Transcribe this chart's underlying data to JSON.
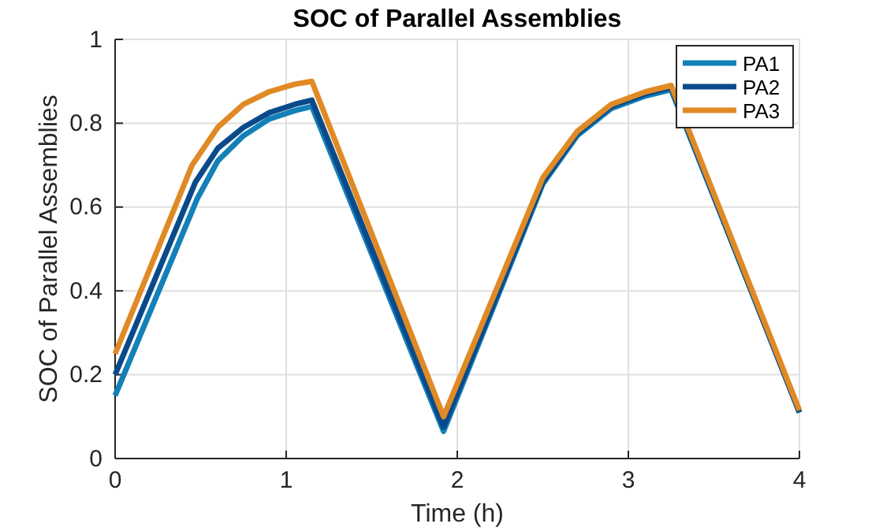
{
  "chart_data": {
    "type": "line",
    "title": "SOC of Parallel Assemblies",
    "xlabel": "Time (h)",
    "ylabel": "SOC of Parallel Assemblies",
    "xlim": [
      0,
      4
    ],
    "xticks": [
      0,
      1,
      2,
      3,
      4
    ],
    "ylim": [
      0,
      1
    ],
    "yticks": [
      0,
      0.2,
      0.4,
      0.6,
      0.8,
      1
    ],
    "grid": true,
    "legend": "top right",
    "line_style": "solid",
    "series": [
      {
        "name": "PA1",
        "color": "#1380b8",
        "x": [
          0,
          0.48,
          0.6,
          0.75,
          0.9,
          1.05,
          1.15,
          1.92,
          2.5,
          2.7,
          2.9,
          3.1,
          3.25,
          4
        ],
        "values": [
          0.15,
          0.62,
          0.71,
          0.77,
          0.81,
          0.83,
          0.84,
          0.065,
          0.655,
          0.77,
          0.835,
          0.865,
          0.88,
          0.11
        ]
      },
      {
        "name": "PA2",
        "color": "#0a4a8a",
        "x": [
          0,
          0.47,
          0.6,
          0.75,
          0.9,
          1.05,
          1.15,
          1.92,
          2.5,
          2.7,
          2.9,
          3.1,
          3.25,
          4
        ],
        "values": [
          0.2,
          0.66,
          0.74,
          0.79,
          0.825,
          0.845,
          0.855,
          0.075,
          0.66,
          0.775,
          0.84,
          0.87,
          0.885,
          0.11
        ]
      },
      {
        "name": "PA3",
        "color": "#e08a26",
        "x": [
          0,
          0.45,
          0.6,
          0.75,
          0.9,
          1.05,
          1.15,
          1.92,
          2.5,
          2.7,
          2.9,
          3.1,
          3.25,
          4
        ],
        "values": [
          0.25,
          0.7,
          0.79,
          0.845,
          0.875,
          0.893,
          0.9,
          0.1,
          0.67,
          0.78,
          0.845,
          0.875,
          0.89,
          0.115
        ]
      }
    ]
  }
}
